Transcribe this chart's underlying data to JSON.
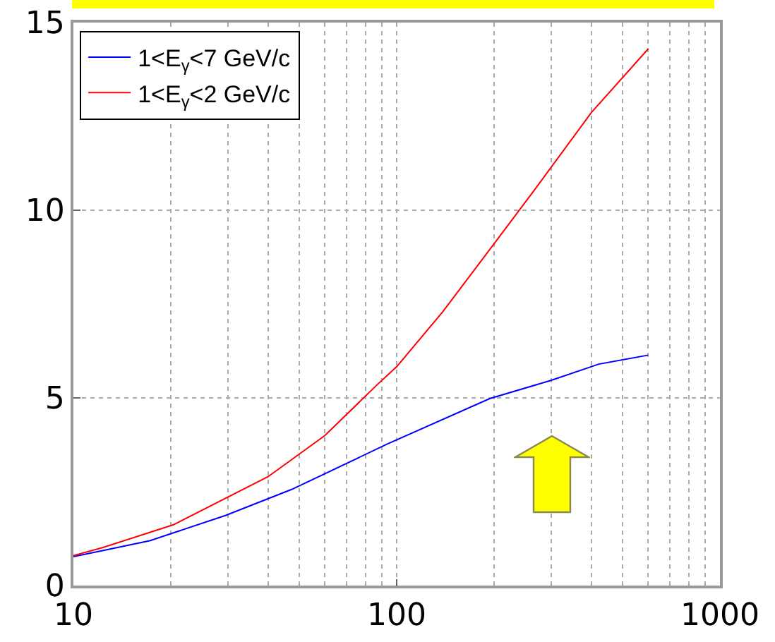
{
  "chart_data": {
    "type": "line",
    "log": "x",
    "grid": true,
    "legend": "top left",
    "xlim": [
      10,
      1000
    ],
    "xticks": [
      10,
      100,
      1000
    ],
    "ylim": [
      0,
      15
    ],
    "yticks": [
      0,
      5,
      10,
      15
    ],
    "series": [
      {
        "name": "1<E$_{γ}$<7 GeV/c",
        "color": "#0000ff",
        "x": [
          10,
          12.3,
          17.3,
          29.6,
          47.3,
          93,
          194,
          301,
          422,
          600
        ],
        "values": [
          0.77,
          0.93,
          1.2,
          1.87,
          2.56,
          3.76,
          4.98,
          5.47,
          5.9,
          6.14
        ]
      },
      {
        "name": "1<E$_{γ}$<2 GeV/c",
        "color": "#ff0000",
        "x": [
          10,
          12.3,
          20.4,
          40,
          60,
          87,
          100,
          139,
          201,
          270,
          400,
          600
        ],
        "values": [
          0.8,
          1.01,
          1.62,
          2.9,
          4.0,
          5.35,
          5.83,
          7.3,
          9.13,
          10.6,
          12.6,
          14.3
        ]
      }
    ]
  }
}
